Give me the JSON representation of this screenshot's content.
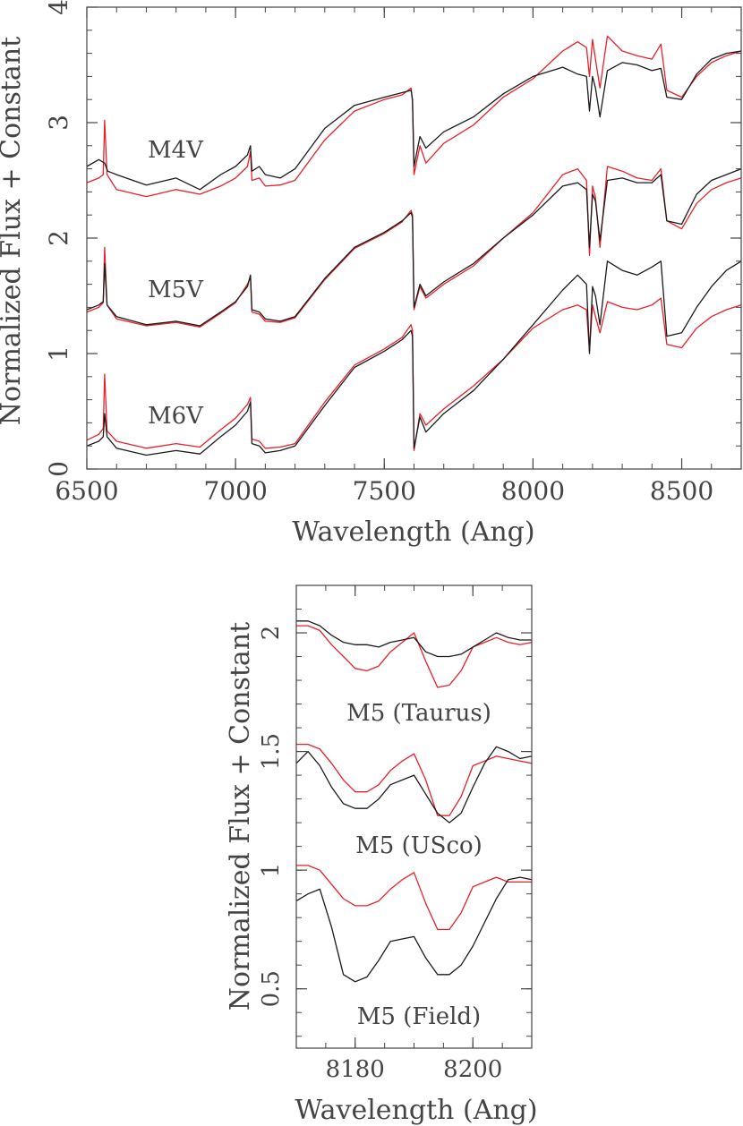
{
  "chart_data": [
    {
      "type": "line",
      "xlabel": "Wavelength (Ang)",
      "ylabel": "Normalized Flux + Constant",
      "xlim": [
        6500,
        8700
      ],
      "ylim": [
        0,
        4
      ],
      "xticks": [
        6500,
        7000,
        7500,
        8000,
        8500
      ],
      "yticks": [
        0,
        1,
        2,
        3,
        4
      ],
      "colors": {
        "black": "#1a1a1a",
        "red": "#e8202a"
      },
      "annotations": [
        "M4V",
        "M5V",
        "M6V"
      ],
      "groups": [
        {
          "label": "M4V",
          "black": {
            "x": [
              6500,
              6540,
              6560,
              6570,
              6600,
              6700,
              6800,
              6880,
              6950,
              7000,
              7040,
              7050,
              7055,
              7080,
              7100,
              7150,
              7200,
              7300,
              7400,
              7500,
              7560,
              7590,
              7595,
              7600,
              7620,
              7640,
              7700,
              7800,
              7900,
              8000,
              8100,
              8150,
              8180,
              8190,
              8200,
              8210,
              8225,
              8250,
              8300,
              8350,
              8400,
              8430,
              8450,
              8500,
              8550,
              8600,
              8650,
              8700
            ],
            "y": [
              2.62,
              2.68,
              2.65,
              2.58,
              2.55,
              2.46,
              2.52,
              2.42,
              2.55,
              2.62,
              2.72,
              2.8,
              2.58,
              2.62,
              2.55,
              2.52,
              2.6,
              2.95,
              3.15,
              3.22,
              3.26,
              3.28,
              3.2,
              2.62,
              2.88,
              2.78,
              2.92,
              3.05,
              3.25,
              3.4,
              3.48,
              3.42,
              3.4,
              3.1,
              3.4,
              3.3,
              3.05,
              3.45,
              3.52,
              3.5,
              3.45,
              3.47,
              3.22,
              3.2,
              3.42,
              3.55,
              3.6,
              3.62
            ]
          },
          "red": {
            "x": [
              6500,
              6540,
              6555,
              6560,
              6568,
              6600,
              6700,
              6800,
              6880,
              6950,
              7000,
              7040,
              7050,
              7055,
              7080,
              7100,
              7150,
              7200,
              7300,
              7400,
              7500,
              7560,
              7590,
              7595,
              7600,
              7620,
              7640,
              7700,
              7800,
              7900,
              8000,
              8100,
              8150,
              8180,
              8190,
              8200,
              8210,
              8225,
              8250,
              8300,
              8350,
              8400,
              8430,
              8450,
              8500,
              8550,
              8600,
              8650,
              8700
            ],
            "y": [
              2.48,
              2.52,
              2.55,
              3.02,
              2.55,
              2.42,
              2.36,
              2.42,
              2.38,
              2.45,
              2.52,
              2.62,
              2.75,
              2.5,
              2.52,
              2.45,
              2.46,
              2.5,
              2.85,
              3.1,
              3.2,
              3.24,
              3.3,
              3.18,
              2.55,
              2.8,
              2.65,
              2.82,
              2.98,
              3.22,
              3.38,
              3.62,
              3.7,
              3.65,
              3.4,
              3.72,
              3.55,
              3.3,
              3.75,
              3.62,
              3.58,
              3.55,
              3.68,
              3.28,
              3.22,
              3.4,
              3.52,
              3.58,
              3.62
            ]
          }
        },
        {
          "label": "M5V",
          "black": {
            "x": [
              6500,
              6540,
              6555,
              6560,
              6568,
              6600,
              6700,
              6800,
              6880,
              6950,
              7000,
              7040,
              7050,
              7055,
              7080,
              7100,
              7150,
              7200,
              7300,
              7400,
              7500,
              7560,
              7590,
              7595,
              7600,
              7620,
              7640,
              7700,
              7800,
              7900,
              8000,
              8100,
              8150,
              8180,
              8190,
              8200,
              8210,
              8225,
              8250,
              8300,
              8350,
              8400,
              8430,
              8450,
              8500,
              8550,
              8600,
              8650,
              8700
            ],
            "y": [
              1.38,
              1.42,
              1.45,
              1.78,
              1.42,
              1.32,
              1.25,
              1.28,
              1.24,
              1.36,
              1.45,
              1.58,
              1.68,
              1.38,
              1.36,
              1.3,
              1.28,
              1.32,
              1.65,
              1.92,
              2.05,
              2.15,
              2.22,
              2.18,
              1.4,
              1.6,
              1.5,
              1.62,
              1.78,
              2.0,
              2.2,
              2.45,
              2.48,
              2.42,
              1.92,
              2.38,
              2.32,
              1.98,
              2.5,
              2.52,
              2.48,
              2.48,
              2.55,
              2.15,
              2.12,
              2.38,
              2.5,
              2.55,
              2.6
            ]
          },
          "red": {
            "x": [
              6500,
              6540,
              6555,
              6560,
              6568,
              6600,
              6700,
              6800,
              6880,
              6950,
              7000,
              7040,
              7050,
              7055,
              7080,
              7100,
              7150,
              7200,
              7300,
              7400,
              7500,
              7560,
              7590,
              7595,
              7600,
              7620,
              7640,
              7700,
              7800,
              7900,
              8000,
              8100,
              8150,
              8180,
              8190,
              8200,
              8210,
              8225,
              8250,
              8300,
              8350,
              8400,
              8430,
              8450,
              8500,
              8550,
              8600,
              8650,
              8700
            ],
            "y": [
              1.36,
              1.4,
              1.44,
              1.92,
              1.42,
              1.3,
              1.24,
              1.27,
              1.23,
              1.35,
              1.44,
              1.6,
              1.66,
              1.36,
              1.34,
              1.28,
              1.27,
              1.31,
              1.64,
              1.91,
              2.04,
              2.14,
              2.24,
              2.2,
              1.38,
              1.58,
              1.48,
              1.6,
              1.76,
              2.0,
              2.22,
              2.55,
              2.6,
              2.5,
              1.85,
              2.45,
              2.35,
              1.92,
              2.62,
              2.58,
              2.52,
              2.5,
              2.6,
              2.15,
              2.08,
              2.3,
              2.42,
              2.48,
              2.52
            ]
          }
        },
        {
          "label": "M6V",
          "black": {
            "x": [
              6500,
              6540,
              6555,
              6560,
              6568,
              6600,
              6700,
              6800,
              6880,
              6950,
              7000,
              7040,
              7050,
              7055,
              7080,
              7100,
              7150,
              7200,
              7300,
              7400,
              7500,
              7560,
              7590,
              7595,
              7600,
              7620,
              7640,
              7700,
              7800,
              7900,
              8000,
              8100,
              8150,
              8180,
              8190,
              8200,
              8210,
              8225,
              8250,
              8300,
              8350,
              8400,
              8430,
              8450,
              8500,
              8550,
              8600,
              8650,
              8700
            ],
            "y": [
              0.2,
              0.24,
              0.28,
              0.48,
              0.28,
              0.18,
              0.12,
              0.16,
              0.13,
              0.28,
              0.38,
              0.5,
              0.58,
              0.22,
              0.2,
              0.14,
              0.16,
              0.2,
              0.55,
              0.88,
              1.02,
              1.12,
              1.2,
              1.15,
              0.18,
              0.45,
              0.32,
              0.48,
              0.68,
              0.95,
              1.25,
              1.55,
              1.68,
              1.6,
              1.0,
              1.58,
              1.5,
              1.25,
              1.8,
              1.72,
              1.68,
              1.75,
              1.8,
              1.15,
              1.18,
              1.4,
              1.58,
              1.72,
              1.8
            ]
          },
          "red": {
            "x": [
              6500,
              6540,
              6555,
              6560,
              6568,
              6600,
              6700,
              6800,
              6880,
              6950,
              7000,
              7040,
              7050,
              7055,
              7080,
              7100,
              7150,
              7200,
              7300,
              7400,
              7500,
              7560,
              7590,
              7595,
              7600,
              7620,
              7640,
              7700,
              7800,
              7900,
              8000,
              8100,
              8150,
              8180,
              8190,
              8200,
              8210,
              8225,
              8250,
              8300,
              8350,
              8400,
              8430,
              8450,
              8500,
              8550,
              8600,
              8650,
              8700
            ],
            "y": [
              0.25,
              0.3,
              0.35,
              0.82,
              0.33,
              0.24,
              0.18,
              0.22,
              0.19,
              0.34,
              0.44,
              0.56,
              0.62,
              0.26,
              0.24,
              0.18,
              0.19,
              0.22,
              0.58,
              0.9,
              1.04,
              1.14,
              1.25,
              1.2,
              0.16,
              0.48,
              0.38,
              0.52,
              0.72,
              0.95,
              1.22,
              1.38,
              1.42,
              1.38,
              1.02,
              1.42,
              1.32,
              1.18,
              1.45,
              1.4,
              1.38,
              1.42,
              1.48,
              1.08,
              1.05,
              1.22,
              1.32,
              1.38,
              1.42
            ]
          }
        }
      ]
    },
    {
      "type": "line",
      "xlabel": "Wavelength (Ang)",
      "ylabel": "Normalized Flux + Constant",
      "xlim": [
        8170,
        8210
      ],
      "ylim": [
        0.25,
        2.2
      ],
      "xticks": [
        8180,
        8200
      ],
      "yticks": [
        0.5,
        1,
        1.5,
        2
      ],
      "colors": {
        "black": "#1a1a1a",
        "red": "#e8202a"
      },
      "annotations": [
        "M5 (Taurus)",
        "M5 (USco)",
        "M5 (Field)"
      ],
      "x": [
        8170,
        8172,
        8174,
        8176,
        8178,
        8180,
        8182,
        8184,
        8186,
        8188,
        8190,
        8192,
        8194,
        8196,
        8198,
        8200,
        8202,
        8204,
        8206,
        8208,
        8210
      ],
      "groups": [
        {
          "label": "M5 (Taurus)",
          "black": [
            2.05,
            2.05,
            2.03,
            1.99,
            1.96,
            1.95,
            1.95,
            1.94,
            1.96,
            1.97,
            1.98,
            1.92,
            1.9,
            1.9,
            1.91,
            1.94,
            1.97,
            2.0,
            1.98,
            1.97,
            1.97
          ],
          "red": [
            2.03,
            2.03,
            2.01,
            1.95,
            1.9,
            1.85,
            1.84,
            1.86,
            1.92,
            1.96,
            2.0,
            1.88,
            1.77,
            1.78,
            1.84,
            1.94,
            1.96,
            1.98,
            1.96,
            1.95,
            1.96
          ]
        },
        {
          "label": "M5 (USco)",
          "black": [
            1.45,
            1.5,
            1.44,
            1.35,
            1.28,
            1.26,
            1.26,
            1.3,
            1.36,
            1.38,
            1.4,
            1.32,
            1.24,
            1.2,
            1.24,
            1.35,
            1.45,
            1.52,
            1.5,
            1.47,
            1.48
          ],
          "red": [
            1.53,
            1.53,
            1.51,
            1.45,
            1.38,
            1.33,
            1.33,
            1.36,
            1.42,
            1.46,
            1.49,
            1.38,
            1.23,
            1.23,
            1.31,
            1.44,
            1.46,
            1.48,
            1.47,
            1.46,
            1.45
          ],
          "note": "smoothed"
        },
        {
          "label": "M5 (Field)",
          "black": [
            0.87,
            0.9,
            0.92,
            0.76,
            0.56,
            0.53,
            0.55,
            0.62,
            0.7,
            0.71,
            0.72,
            0.63,
            0.56,
            0.56,
            0.6,
            0.68,
            0.78,
            0.88,
            0.96,
            0.97,
            0.96
          ],
          "red": [
            1.02,
            1.02,
            1.0,
            0.94,
            0.88,
            0.85,
            0.85,
            0.87,
            0.92,
            0.96,
            0.99,
            0.86,
            0.75,
            0.75,
            0.82,
            0.93,
            0.95,
            0.97,
            0.95,
            0.95,
            0.95
          ]
        }
      ]
    }
  ]
}
